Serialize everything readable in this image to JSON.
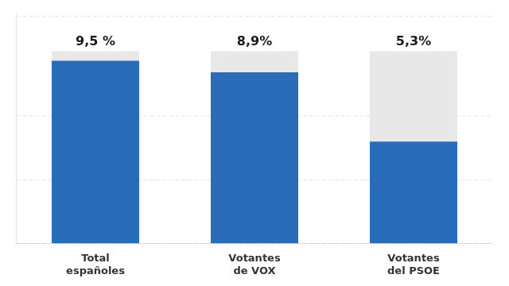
{
  "chart_data": {
    "type": "bar",
    "categories": [
      "Total\nespañoles",
      "Votantes\nde VOX",
      "Votantes\ndel PSOE"
    ],
    "series": [
      {
        "color": "#e8e8e8",
        "values": [
          10.0,
          10.0,
          10.0
        ]
      },
      {
        "color": "#2b6cb8",
        "values": [
          9.5,
          8.9,
          5.3
        ],
        "value_labels": [
          "9,5 %",
          "8,9%",
          "5,3%"
        ]
      }
    ],
    "ylim": [
      0,
      12
    ],
    "yticks": [
      0,
      3.33,
      6.66,
      11.8
    ],
    "grid": true,
    "data_labels": true,
    "tick_labels": "x"
  }
}
